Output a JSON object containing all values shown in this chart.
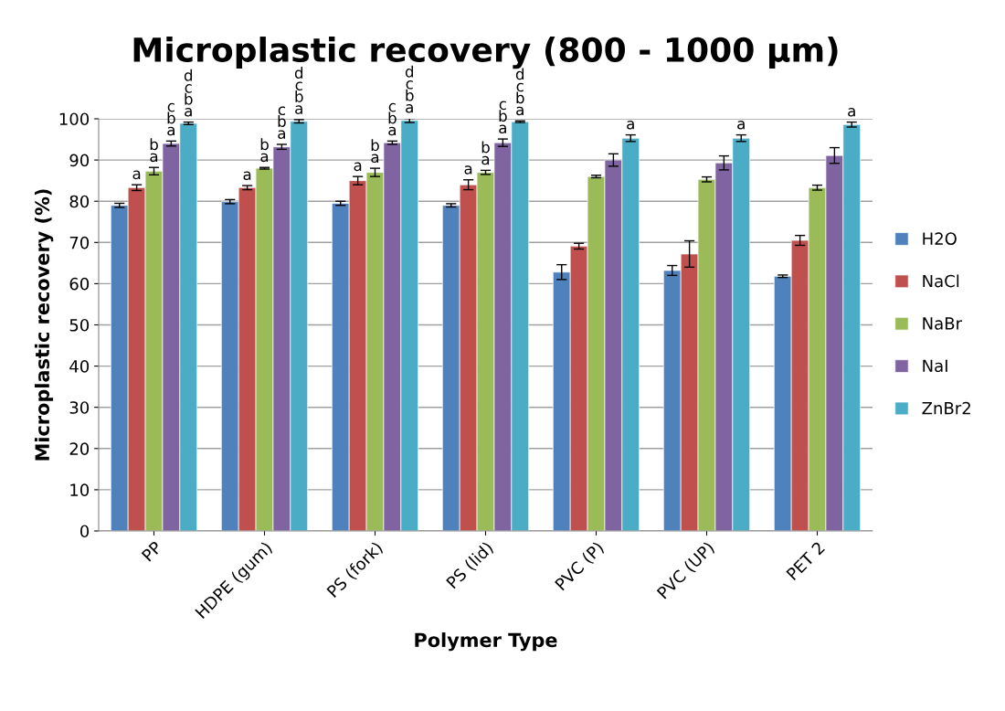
{
  "chart_data": {
    "type": "bar",
    "title": "Microplastic recovery (800 - 1000 µm)",
    "xlabel": "Polymer Type",
    "ylabel": "Microplastic recovery (%)",
    "categories": [
      "PP",
      "HDPE (gum)",
      "PS (fork)",
      "PS (lid)",
      "PVC (P)",
      "PVC (UP)",
      "PET 2"
    ],
    "series": [
      {
        "name": "H2O",
        "color": "#4f81bd",
        "values": [
          79,
          79.9,
          79.5,
          79,
          62.8,
          63.2,
          61.8
        ],
        "errors": [
          0.5,
          0.5,
          0.5,
          0.4,
          1.8,
          1.2,
          0.3
        ]
      },
      {
        "name": "NaCl",
        "color": "#c0504d",
        "values": [
          83.3,
          83.3,
          85,
          84,
          69.1,
          67.2,
          70.5
        ],
        "errors": [
          0.7,
          0.5,
          1,
          1.2,
          0.7,
          3.2,
          1.2
        ],
        "value_labels": [
          "a",
          "a",
          "a",
          "a",
          null,
          null,
          null
        ]
      },
      {
        "name": "NaBr",
        "color": "#9bbb59",
        "values": [
          87.3,
          88,
          87,
          87,
          86,
          85.3,
          83.3
        ],
        "errors": [
          0.9,
          0.2,
          1,
          0.5,
          0.3,
          0.6,
          0.6
        ],
        "value_labels": [
          "b\na",
          "b\na",
          "b\na",
          "b\na",
          null,
          null,
          null
        ]
      },
      {
        "name": "NaI",
        "color": "#8064a2",
        "values": [
          94,
          93.2,
          94.2,
          94.2,
          90,
          89.3,
          91.1
        ],
        "errors": [
          0.6,
          0.6,
          0.4,
          0.9,
          1.5,
          1.7,
          1.9
        ],
        "value_labels": [
          "c\nb\na",
          "c\nb\na",
          "c\nb\na",
          "c\nb\na",
          null,
          null,
          null
        ]
      },
      {
        "name": "ZnBr2",
        "color": "#4bacc6",
        "values": [
          98.9,
          99.4,
          99.6,
          99.3,
          95.3,
          95.3,
          98.6
        ],
        "errors": [
          0.3,
          0.4,
          0.5,
          0.2,
          0.8,
          0.8,
          0.6
        ],
        "value_labels": [
          "d\nc\nb\na",
          "d\nc\nb\na",
          "d\nc\nb\na",
          "d\nc\nb\na",
          "a",
          "a",
          "a"
        ]
      }
    ],
    "ylim": [
      0,
      100
    ],
    "yticks": [
      0,
      10,
      20,
      30,
      40,
      50,
      60,
      70,
      80,
      90,
      100
    ],
    "grid": "y",
    "legend": "right"
  }
}
